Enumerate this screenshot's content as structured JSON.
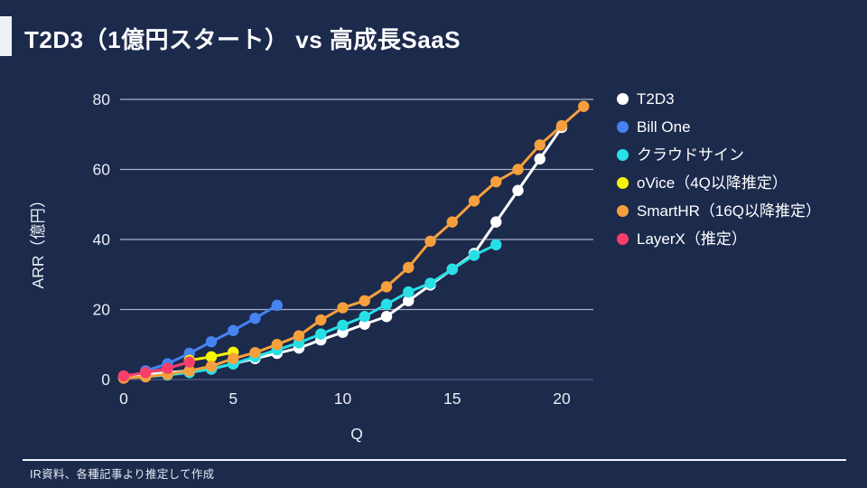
{
  "slide": {
    "title": "T2D3（1億円スタート） vs 高成長SaaS",
    "footer": "IR資料、各種記事より推定して作成",
    "background_color": "#1c2a4c",
    "accent_color": "#eef1f6"
  },
  "chart_data": {
    "type": "line",
    "title": "",
    "xlabel": "Q",
    "ylabel": "ARR（億円）",
    "xlim": [
      0,
      21.5
    ],
    "ylim": [
      0,
      80
    ],
    "x_ticks": [
      0,
      5,
      10,
      15,
      20
    ],
    "y_ticks": [
      0,
      20,
      40,
      60,
      80
    ],
    "grid": true,
    "legend_position": "right",
    "gridline_color": "#a9b1c4",
    "zeroline_color": "#4a5680",
    "tick_label_color": "#e9edf5",
    "series": [
      {
        "name": "T2D3",
        "color": "#ffffff",
        "x": [
          0,
          1,
          2,
          3,
          4,
          5,
          6,
          7,
          8,
          9,
          10,
          11,
          12,
          13,
          14,
          15,
          16,
          17,
          18,
          19,
          20
        ],
        "y": [
          1,
          1.5,
          2,
          2.5,
          3,
          4.5,
          6,
          7.5,
          9,
          11.3,
          13.5,
          15.8,
          18,
          22.5,
          27,
          31.5,
          36,
          45,
          54,
          63,
          72
        ]
      },
      {
        "name": "Bill One",
        "color": "#4584f2",
        "x": [
          1,
          2,
          3,
          4,
          5,
          6,
          7
        ],
        "y": [
          2.5,
          4.5,
          7.5,
          10.8,
          14,
          17.5,
          21.2
        ]
      },
      {
        "name": "クラウドサイン",
        "color": "#27e0e6",
        "x": [
          0,
          1,
          2,
          3,
          4,
          5,
          6,
          7,
          8,
          9,
          10,
          11,
          12,
          13,
          14,
          15,
          16,
          17
        ],
        "y": [
          0.5,
          0.8,
          1.3,
          2,
          3,
          4.5,
          6.5,
          8.5,
          10.5,
          13,
          15.5,
          18,
          21.5,
          25,
          27.5,
          31.5,
          35.5,
          38.5
        ]
      },
      {
        "name": "oVice（4Q以降推定）",
        "color": "#f7f406",
        "x": [
          3,
          4,
          5
        ],
        "y": [
          5.5,
          6.5,
          7.8
        ]
      },
      {
        "name": "SmartHR（16Q以降推定）",
        "color": "#f5a03c",
        "x": [
          0,
          1,
          2,
          3,
          4,
          5,
          6,
          7,
          8,
          9,
          10,
          11,
          12,
          13,
          14,
          15,
          16,
          17,
          18,
          19,
          20,
          21
        ],
        "y": [
          0.4,
          0.8,
          1.5,
          2.5,
          3.8,
          6,
          7.7,
          10,
          12.5,
          17,
          20.5,
          22.5,
          26.5,
          32,
          39.5,
          45,
          51,
          56.5,
          60,
          67,
          72.5,
          78
        ]
      },
      {
        "name": "LayerX（推定）",
        "color": "#fa3e6c",
        "x": [
          0,
          1,
          2,
          3
        ],
        "y": [
          1,
          2,
          3.2,
          5
        ]
      }
    ]
  }
}
